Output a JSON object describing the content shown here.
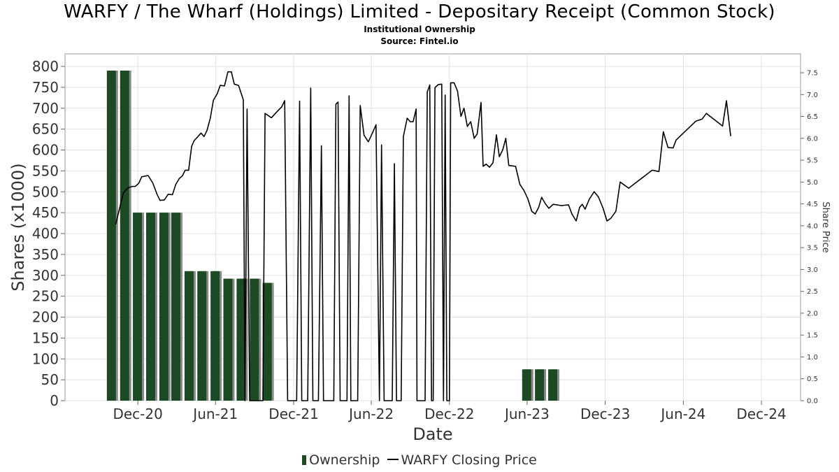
{
  "title": "WARFY / The Wharf (Holdings) Limited - Depositary Receipt (Common Stock)",
  "subtitle_1": "Institutional Ownership",
  "subtitle_2": "Source: Fintel.io",
  "colors": {
    "bar_fill": "#1b4a25",
    "bar_shadow": "#8a8a8a",
    "price_line": "#000000",
    "grid": "#e2e2e2",
    "axis_text": "#333333"
  },
  "chart_data": {
    "type": "bar",
    "xlabel": "Date",
    "ylabel": "Shares (x1000)",
    "y2label": "Share Price",
    "ylim": [
      0,
      800
    ],
    "y2lim": [
      0,
      7.6
    ],
    "grid": true,
    "legend_position": "bottom-center",
    "x_ticks": [
      "Dec-20",
      "Jun-21",
      "Dec-21",
      "Jun-22",
      "Dec-22",
      "Jun-23",
      "Dec-23",
      "Jun-24",
      "Dec-24"
    ],
    "y_ticks": [
      0,
      50,
      100,
      150,
      200,
      250,
      300,
      350,
      400,
      450,
      500,
      550,
      600,
      650,
      700,
      750,
      800
    ],
    "y2_ticks": [
      "0.0",
      "0.5",
      "1.0",
      "1.5",
      "2.0",
      "2.5",
      "3.0",
      "3.5",
      "4.0",
      "4.5",
      "5.0",
      "5.5",
      "6.0",
      "6.5",
      "7.0",
      "7.5"
    ],
    "series": [
      {
        "name": "Ownership",
        "type": "bar",
        "points": [
          [
            "2020-09-30",
            790
          ],
          [
            "2020-10-31",
            790
          ],
          [
            "2020-11-30",
            450
          ],
          [
            "2020-12-31",
            450
          ],
          [
            "2021-01-31",
            450
          ],
          [
            "2021-02-28",
            450
          ],
          [
            "2021-03-31",
            310
          ],
          [
            "2021-04-30",
            310
          ],
          [
            "2021-05-31",
            310
          ],
          [
            "2021-06-30",
            292
          ],
          [
            "2021-07-31",
            292
          ],
          [
            "2021-08-31",
            292
          ],
          [
            "2021-09-30",
            282
          ],
          [
            "2023-05-31",
            75
          ],
          [
            "2023-06-30",
            75
          ],
          [
            "2023-07-31",
            75
          ]
        ]
      },
      {
        "name": "WARFY Closing Price",
        "type": "line",
        "points": [
          [
            "2020-10-10",
            4.03
          ],
          [
            "2020-10-28",
            4.75
          ],
          [
            "2020-11-08",
            4.87
          ],
          [
            "2020-11-18",
            4.9
          ],
          [
            "2020-11-25",
            4.9
          ],
          [
            "2020-12-03",
            4.97
          ],
          [
            "2020-12-10",
            5.12
          ],
          [
            "2020-12-25",
            5.15
          ],
          [
            "2021-01-05",
            4.98
          ],
          [
            "2021-01-15",
            4.72
          ],
          [
            "2021-01-22",
            4.58
          ],
          [
            "2021-02-01",
            4.59
          ],
          [
            "2021-02-10",
            4.72
          ],
          [
            "2021-02-20",
            4.71
          ],
          [
            "2021-02-28",
            4.95
          ],
          [
            "2021-03-08",
            5.08
          ],
          [
            "2021-03-15",
            5.14
          ],
          [
            "2021-03-22",
            5.27
          ],
          [
            "2021-03-30",
            5.27
          ],
          [
            "2021-04-06",
            5.82
          ],
          [
            "2021-04-12",
            5.95
          ],
          [
            "2021-04-20",
            6.03
          ],
          [
            "2021-04-28",
            6.12
          ],
          [
            "2021-05-05",
            6.04
          ],
          [
            "2021-05-12",
            6.18
          ],
          [
            "2021-05-20",
            6.47
          ],
          [
            "2021-05-27",
            6.87
          ],
          [
            "2021-06-05",
            7.02
          ],
          [
            "2021-06-12",
            7.21
          ],
          [
            "2021-06-22",
            7.2
          ],
          [
            "2021-06-30",
            7.52
          ],
          [
            "2021-07-08",
            7.52
          ],
          [
            "2021-07-15",
            7.24
          ],
          [
            "2021-07-25",
            7.21
          ],
          [
            "2021-08-05",
            6.88
          ],
          [
            "2021-08-09",
            0.0
          ],
          [
            "2021-08-14",
            6.67
          ],
          [
            "2021-08-20",
            0.0
          ],
          [
            "2021-09-20",
            0.0
          ],
          [
            "2021-09-25",
            6.57
          ],
          [
            "2021-10-10",
            6.47
          ],
          [
            "2021-10-22",
            6.6
          ],
          [
            "2021-11-03",
            6.72
          ],
          [
            "2021-11-10",
            6.86
          ],
          [
            "2021-11-17",
            0.0
          ],
          [
            "2021-12-08",
            0.0
          ],
          [
            "2021-12-15",
            6.85
          ],
          [
            "2021-12-20",
            0.0
          ],
          [
            "2022-01-03",
            0.0
          ],
          [
            "2022-01-10",
            7.15
          ],
          [
            "2022-01-15",
            0.0
          ],
          [
            "2022-01-28",
            0.0
          ],
          [
            "2022-02-04",
            5.83
          ],
          [
            "2022-02-09",
            0.0
          ],
          [
            "2022-03-05",
            0.0
          ],
          [
            "2022-03-10",
            6.78
          ],
          [
            "2022-03-15",
            6.83
          ],
          [
            "2022-03-20",
            0.0
          ],
          [
            "2022-04-05",
            0.0
          ],
          [
            "2022-04-10",
            6.97
          ],
          [
            "2022-04-14",
            0.0
          ],
          [
            "2022-04-30",
            0.0
          ],
          [
            "2022-05-06",
            6.75
          ],
          [
            "2022-05-15",
            6.07
          ],
          [
            "2022-05-25",
            5.92
          ],
          [
            "2022-06-04",
            6.13
          ],
          [
            "2022-06-12",
            6.31
          ],
          [
            "2022-06-20",
            0.0
          ],
          [
            "2022-06-25",
            5.85
          ],
          [
            "2022-07-01",
            0.0
          ],
          [
            "2022-07-20",
            0.0
          ],
          [
            "2022-07-25",
            5.42
          ],
          [
            "2022-07-30",
            0.0
          ],
          [
            "2022-08-10",
            0.0
          ],
          [
            "2022-08-15",
            6.04
          ],
          [
            "2022-08-24",
            6.46
          ],
          [
            "2022-08-31",
            6.38
          ],
          [
            "2022-09-07",
            6.38
          ],
          [
            "2022-09-14",
            6.67
          ],
          [
            "2022-09-16",
            0.0
          ],
          [
            "2022-10-05",
            0.0
          ],
          [
            "2022-10-10",
            7.06
          ],
          [
            "2022-10-16",
            7.22
          ],
          [
            "2022-10-20",
            0.0
          ],
          [
            "2022-10-24",
            0.0
          ],
          [
            "2022-10-28",
            7.16
          ],
          [
            "2022-11-05",
            7.23
          ],
          [
            "2022-11-13",
            7.24
          ],
          [
            "2022-11-17",
            0.0
          ],
          [
            "2022-11-21",
            6.99
          ],
          [
            "2022-11-25",
            0.0
          ],
          [
            "2022-12-01",
            0.0
          ],
          [
            "2022-12-04",
            7.27
          ],
          [
            "2022-12-12",
            7.27
          ],
          [
            "2022-12-20",
            7.08
          ],
          [
            "2022-12-28",
            6.5
          ],
          [
            "2023-01-04",
            6.69
          ],
          [
            "2023-01-12",
            6.27
          ],
          [
            "2023-01-20",
            6.38
          ],
          [
            "2023-01-28",
            6.0
          ],
          [
            "2023-02-04",
            6.1
          ],
          [
            "2023-02-13",
            6.82
          ],
          [
            "2023-02-18",
            5.36
          ],
          [
            "2023-02-25",
            5.41
          ],
          [
            "2023-03-05",
            5.34
          ],
          [
            "2023-03-13",
            5.44
          ],
          [
            "2023-03-21",
            6.08
          ],
          [
            "2023-03-28",
            5.58
          ],
          [
            "2023-04-05",
            5.74
          ],
          [
            "2023-04-12",
            6.0
          ],
          [
            "2023-04-19",
            5.38
          ],
          [
            "2023-04-26",
            5.37
          ],
          [
            "2023-05-05",
            5.36
          ],
          [
            "2023-05-15",
            4.95
          ],
          [
            "2023-05-25",
            4.8
          ],
          [
            "2023-06-03",
            4.61
          ],
          [
            "2023-06-12",
            4.33
          ],
          [
            "2023-06-20",
            4.27
          ],
          [
            "2023-06-28",
            4.42
          ],
          [
            "2023-07-05",
            4.65
          ],
          [
            "2023-07-14",
            4.5
          ],
          [
            "2023-07-22",
            4.4
          ],
          [
            "2023-08-01",
            4.49
          ],
          [
            "2023-08-10",
            4.48
          ],
          [
            "2023-08-20",
            4.46
          ],
          [
            "2023-08-28",
            4.47
          ],
          [
            "2023-09-06",
            4.48
          ],
          [
            "2023-09-14",
            4.27
          ],
          [
            "2023-09-24",
            4.11
          ],
          [
            "2023-10-02",
            4.42
          ],
          [
            "2023-10-08",
            4.49
          ],
          [
            "2023-10-15",
            4.38
          ],
          [
            "2023-10-25",
            4.61
          ],
          [
            "2023-11-05",
            4.78
          ],
          [
            "2023-11-15",
            4.66
          ],
          [
            "2023-11-26",
            4.4
          ],
          [
            "2023-12-05",
            4.11
          ],
          [
            "2023-12-14",
            4.17
          ],
          [
            "2023-12-26",
            4.33
          ],
          [
            "2024-01-05",
            5.0
          ],
          [
            "2024-01-25",
            4.86
          ],
          [
            "2024-03-20",
            5.27
          ],
          [
            "2024-04-05",
            5.24
          ],
          [
            "2024-04-15",
            6.15
          ],
          [
            "2024-04-26",
            5.79
          ],
          [
            "2024-05-08",
            5.78
          ],
          [
            "2024-05-15",
            5.96
          ],
          [
            "2024-06-30",
            6.39
          ],
          [
            "2024-07-15",
            6.44
          ],
          [
            "2024-07-25",
            6.57
          ],
          [
            "2024-09-01",
            6.28
          ],
          [
            "2024-09-10",
            6.86
          ],
          [
            "2024-09-20",
            6.05
          ]
        ]
      }
    ]
  }
}
